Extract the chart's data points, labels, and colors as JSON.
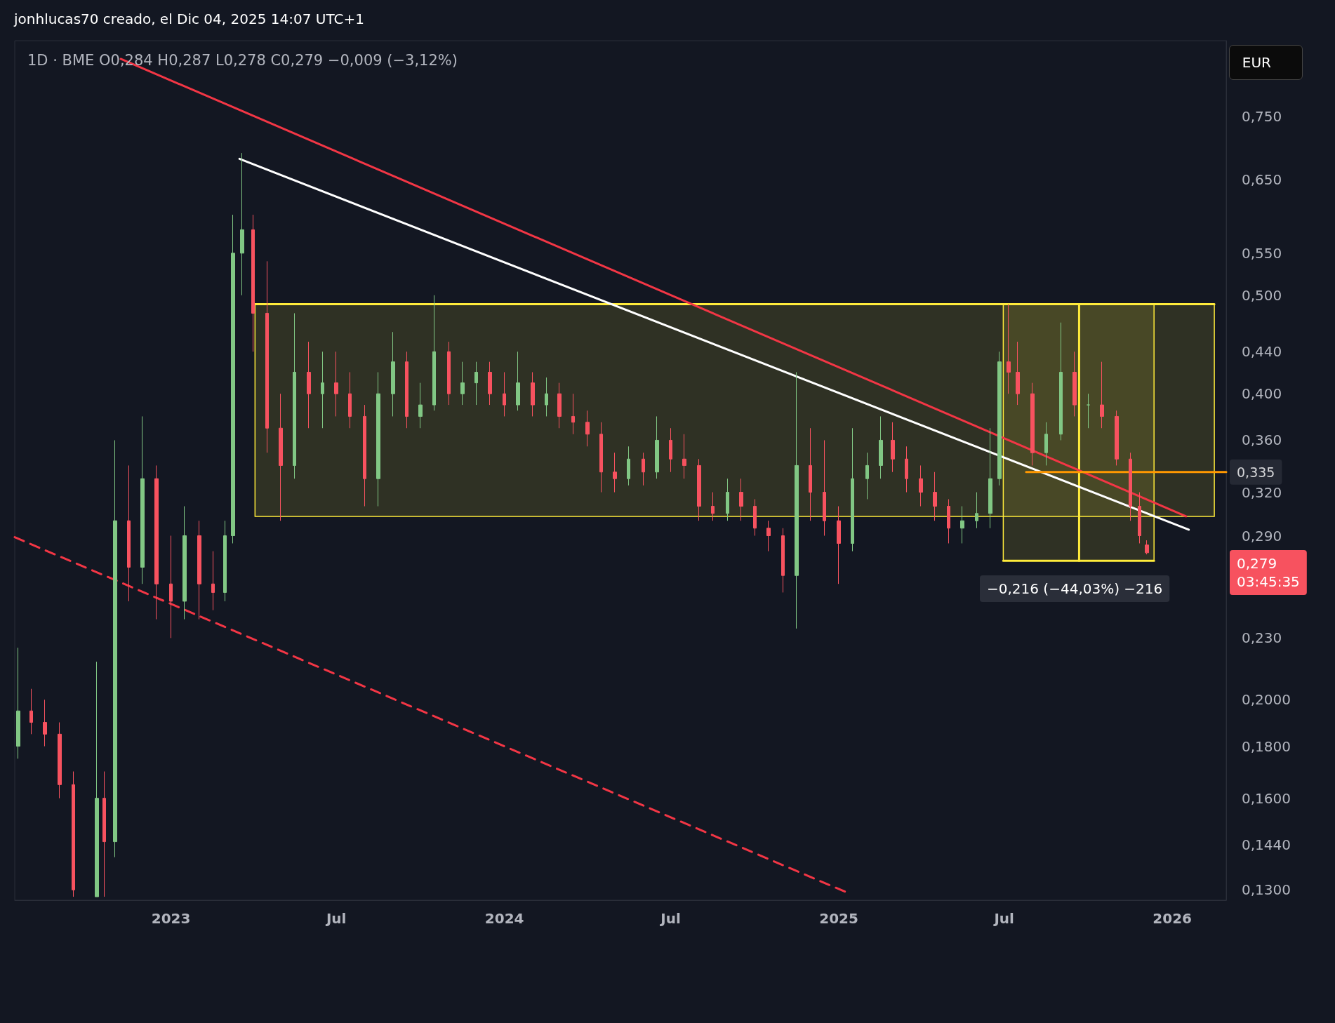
{
  "chart_data": {
    "type": "candlestick",
    "title": "1D · BME O0,284 H0,287 L0,278 C0,279 −0,009 (−3,12%)",
    "annotations": [
      "jonhlucas70 creado, el Dic 04, 2025 14:07 UTC+1",
      "EUR",
      {
        "text": "0,335",
        "x": "2026-03-01",
        "y": 0.335
      },
      "0,279\n03:45:35",
      "−0,216 (−44,03%) −216"
    ],
    "x": [
      "2022-07-18",
      "2022-08-01",
      "2022-08-16",
      "2022-09-01",
      "2022-09-16",
      "2022-10-12",
      "2022-10-20",
      "2022-11-01",
      "2022-11-16",
      "2022-12-01",
      "2022-12-16",
      "2023-01-01",
      "2023-01-16",
      "2023-02-01",
      "2023-02-16",
      "2023-03-01",
      "2023-03-10",
      "2023-03-20",
      "2023-04-01",
      "2023-04-16",
      "2023-05-01",
      "2023-05-16",
      "2023-06-01",
      "2023-06-16",
      "2023-07-01",
      "2023-07-16",
      "2023-08-01",
      "2023-08-16",
      "2023-09-01",
      "2023-09-16",
      "2023-10-01",
      "2023-10-16",
      "2023-11-01",
      "2023-11-16",
      "2023-12-01",
      "2023-12-16",
      "2024-01-01",
      "2024-01-16",
      "2024-02-01",
      "2024-02-16",
      "2024-03-01",
      "2024-03-16",
      "2024-04-01",
      "2024-04-16",
      "2024-05-01",
      "2024-05-16",
      "2024-06-01",
      "2024-06-16",
      "2024-07-01",
      "2024-07-16",
      "2024-08-01",
      "2024-08-16",
      "2024-09-01",
      "2024-09-16",
      "2024-10-01",
      "2024-10-16",
      "2024-11-01",
      "2024-11-16",
      "2024-12-01",
      "2024-12-16",
      "2025-01-01",
      "2025-01-16",
      "2025-02-01",
      "2025-02-16",
      "2025-03-01",
      "2025-03-16",
      "2025-04-01",
      "2025-04-16",
      "2025-05-01",
      "2025-05-16",
      "2025-06-01",
      "2025-06-16",
      "2025-06-26",
      "2025-07-06",
      "2025-07-16",
      "2025-08-01",
      "2025-08-16",
      "2025-09-01",
      "2025-09-16",
      "2025-10-01",
      "2025-10-16",
      "2025-11-01",
      "2025-11-16",
      "2025-11-26",
      "2025-12-04"
    ],
    "ohlc": [
      [
        0.18,
        0.225,
        0.175,
        0.195
      ],
      [
        0.195,
        0.205,
        0.185,
        0.19
      ],
      [
        0.19,
        0.2,
        0.18,
        0.185
      ],
      [
        0.185,
        0.19,
        0.16,
        0.165
      ],
      [
        0.165,
        0.17,
        0.128,
        0.13
      ],
      [
        0.128,
        0.218,
        0.128,
        0.16
      ],
      [
        0.16,
        0.17,
        0.128,
        0.145
      ],
      [
        0.145,
        0.36,
        0.14,
        0.3
      ],
      [
        0.3,
        0.34,
        0.25,
        0.27
      ],
      [
        0.27,
        0.38,
        0.26,
        0.33
      ],
      [
        0.33,
        0.34,
        0.24,
        0.26
      ],
      [
        0.26,
        0.29,
        0.23,
        0.25
      ],
      [
        0.25,
        0.31,
        0.24,
        0.29
      ],
      [
        0.29,
        0.3,
        0.24,
        0.26
      ],
      [
        0.26,
        0.28,
        0.245,
        0.255
      ],
      [
        0.255,
        0.3,
        0.25,
        0.29
      ],
      [
        0.29,
        0.6,
        0.285,
        0.55
      ],
      [
        0.55,
        0.69,
        0.5,
        0.58
      ],
      [
        0.58,
        0.6,
        0.44,
        0.48
      ],
      [
        0.48,
        0.54,
        0.35,
        0.37
      ],
      [
        0.37,
        0.4,
        0.3,
        0.34
      ],
      [
        0.34,
        0.48,
        0.33,
        0.42
      ],
      [
        0.42,
        0.45,
        0.37,
        0.4
      ],
      [
        0.4,
        0.44,
        0.37,
        0.41
      ],
      [
        0.41,
        0.44,
        0.38,
        0.4
      ],
      [
        0.4,
        0.42,
        0.37,
        0.38
      ],
      [
        0.38,
        0.39,
        0.31,
        0.33
      ],
      [
        0.33,
        0.42,
        0.31,
        0.4
      ],
      [
        0.4,
        0.46,
        0.38,
        0.43
      ],
      [
        0.43,
        0.44,
        0.37,
        0.38
      ],
      [
        0.38,
        0.41,
        0.37,
        0.39
      ],
      [
        0.39,
        0.5,
        0.385,
        0.44
      ],
      [
        0.44,
        0.45,
        0.39,
        0.4
      ],
      [
        0.4,
        0.43,
        0.39,
        0.41
      ],
      [
        0.41,
        0.43,
        0.39,
        0.42
      ],
      [
        0.42,
        0.43,
        0.39,
        0.4
      ],
      [
        0.4,
        0.42,
        0.38,
        0.39
      ],
      [
        0.39,
        0.44,
        0.385,
        0.41
      ],
      [
        0.41,
        0.42,
        0.38,
        0.39
      ],
      [
        0.39,
        0.415,
        0.38,
        0.4
      ],
      [
        0.4,
        0.41,
        0.37,
        0.38
      ],
      [
        0.38,
        0.4,
        0.365,
        0.375
      ],
      [
        0.375,
        0.385,
        0.355,
        0.365
      ],
      [
        0.365,
        0.375,
        0.32,
        0.335
      ],
      [
        0.335,
        0.35,
        0.32,
        0.33
      ],
      [
        0.33,
        0.355,
        0.325,
        0.345
      ],
      [
        0.345,
        0.35,
        0.325,
        0.335
      ],
      [
        0.335,
        0.38,
        0.33,
        0.36
      ],
      [
        0.36,
        0.37,
        0.335,
        0.345
      ],
      [
        0.345,
        0.365,
        0.33,
        0.34
      ],
      [
        0.34,
        0.345,
        0.3,
        0.31
      ],
      [
        0.31,
        0.32,
        0.3,
        0.305
      ],
      [
        0.305,
        0.33,
        0.3,
        0.32
      ],
      [
        0.32,
        0.33,
        0.3,
        0.31
      ],
      [
        0.31,
        0.315,
        0.29,
        0.295
      ],
      [
        0.295,
        0.3,
        0.28,
        0.29
      ],
      [
        0.29,
        0.295,
        0.255,
        0.265
      ],
      [
        0.265,
        0.42,
        0.235,
        0.34
      ],
      [
        0.34,
        0.37,
        0.3,
        0.32
      ],
      [
        0.32,
        0.36,
        0.29,
        0.3
      ],
      [
        0.3,
        0.31,
        0.26,
        0.285
      ],
      [
        0.285,
        0.37,
        0.28,
        0.33
      ],
      [
        0.33,
        0.35,
        0.315,
        0.34
      ],
      [
        0.34,
        0.38,
        0.33,
        0.36
      ],
      [
        0.36,
        0.375,
        0.335,
        0.345
      ],
      [
        0.345,
        0.355,
        0.32,
        0.33
      ],
      [
        0.33,
        0.34,
        0.31,
        0.32
      ],
      [
        0.32,
        0.335,
        0.3,
        0.31
      ],
      [
        0.31,
        0.315,
        0.285,
        0.295
      ],
      [
        0.295,
        0.31,
        0.285,
        0.3
      ],
      [
        0.3,
        0.32,
        0.295,
        0.305
      ],
      [
        0.305,
        0.37,
        0.295,
        0.33
      ],
      [
        0.33,
        0.44,
        0.325,
        0.43
      ],
      [
        0.43,
        0.49,
        0.4,
        0.42
      ],
      [
        0.42,
        0.45,
        0.39,
        0.4
      ],
      [
        0.4,
        0.41,
        0.34,
        0.35
      ],
      [
        0.35,
        0.375,
        0.34,
        0.365
      ],
      [
        0.365,
        0.47,
        0.36,
        0.42
      ],
      [
        0.42,
        0.44,
        0.38,
        0.39
      ],
      [
        0.39,
        0.4,
        0.37,
        0.39
      ],
      [
        0.39,
        0.43,
        0.37,
        0.38
      ],
      [
        0.38,
        0.385,
        0.34,
        0.345
      ],
      [
        0.345,
        0.35,
        0.3,
        0.31
      ],
      [
        0.31,
        0.32,
        0.285,
        0.29
      ],
      [
        0.284,
        0.287,
        0.278,
        0.279
      ]
    ],
    "colors": [
      "#81c784",
      "#f7525f",
      "#f7525f",
      "#f7525f",
      "#f7525f",
      "#81c784",
      "#f7525f",
      "#81c784",
      "#f7525f",
      "#81c784",
      "#f7525f",
      "#f7525f",
      "#81c784",
      "#f7525f",
      "#f7525f",
      "#81c784",
      "#81c784",
      "#81c784",
      "#f7525f",
      "#f7525f",
      "#f7525f",
      "#81c784",
      "#f7525f",
      "#81c784",
      "#f7525f",
      "#f7525f",
      "#f7525f",
      "#81c784",
      "#81c784",
      "#f7525f",
      "#81c784",
      "#81c784",
      "#f7525f",
      "#81c784",
      "#81c784",
      "#f7525f",
      "#f7525f",
      "#81c784",
      "#f7525f",
      "#81c784",
      "#f7525f",
      "#f7525f",
      "#f7525f",
      "#f7525f",
      "#f7525f",
      "#81c784",
      "#f7525f",
      "#81c784",
      "#f7525f",
      "#f7525f",
      "#f7525f",
      "#f7525f",
      "#81c784",
      "#f7525f",
      "#f7525f",
      "#f7525f",
      "#f7525f",
      "#81c784",
      "#f7525f",
      "#f7525f",
      "#f7525f",
      "#81c784",
      "#81c784",
      "#81c784",
      "#f7525f",
      "#f7525f",
      "#f7525f",
      "#f7525f",
      "#f7525f",
      "#81c784",
      "#81c784",
      "#81c784",
      "#81c784",
      "#f7525f",
      "#f7525f",
      "#f7525f",
      "#81c784",
      "#81c784",
      "#f7525f",
      "#81c784",
      "#f7525f",
      "#f7525f",
      "#f7525f",
      "#f7525f",
      "#f7525f"
    ],
    "series": [
      {
        "type": "line",
        "x": [
          "2023-04-03",
          "2026-02-16"
        ],
        "values": [
          0.49,
          0.49
        ],
        "lower": [
          0.303,
          0.303
        ],
        "upper": [
          0.49,
          0.49
        ],
        "color": "#ffeb3b"
      },
      {
        "type": "line",
        "x": [
          "2025-06-30",
          "2025-12-12"
        ],
        "values": [
          0.274,
          0.274
        ],
        "lower": [
          0.274,
          0.274
        ],
        "upper": [
          0.49,
          0.49
        ],
        "color": "#ffeb3b"
      },
      {
        "type": "line",
        "x": [
          "2025-09-21",
          "2025-09-21"
        ],
        "values": [
          0.49,
          0.274
        ],
        "color": "#ffeb3b",
        "line_style": "solid"
      },
      {
        "type": "line",
        "x": [
          "2022-11-07",
          "2026-01-16"
        ],
        "values": [
          0.854,
          0.303
        ],
        "color": "#f23645",
        "line_style": "solid"
      },
      {
        "type": "line",
        "x": [
          "2023-03-17",
          "2026-01-19"
        ],
        "values": [
          0.681,
          0.294
        ],
        "color": "#ffffff",
        "line_style": "solid"
      },
      {
        "type": "line",
        "x": [
          "2022-07-14",
          "2025-01-12"
        ],
        "values": [
          0.289,
          0.129
        ],
        "color": "#f23645",
        "line_style": "dashed"
      },
      {
        "type": "line",
        "x": [
          "2025-07-25",
          "2026-03-01"
        ],
        "values": [
          0.335,
          0.335
        ],
        "color": "#ff9800",
        "line_style": "solid"
      }
    ],
    "xlim": [
      "2022-07-14",
      "2026-03-01"
    ],
    "xticks": [
      {
        "value": "2023-01-01",
        "label": "2023"
      },
      {
        "value": "2023-07-01",
        "label": "Jul"
      },
      {
        "value": "2024-01-01",
        "label": "2024"
      },
      {
        "value": "2024-07-01",
        "label": "Jul"
      },
      {
        "value": "2025-01-01",
        "label": "2025"
      },
      {
        "value": "2025-07-01",
        "label": "Jul"
      },
      {
        "value": "2026-01-01",
        "label": "2026"
      }
    ],
    "ylim": [
      0.127,
      0.89
    ],
    "log": true,
    "yticks": [
      {
        "value": 0.75,
        "label": "0,750"
      },
      {
        "value": 0.65,
        "label": "0,650"
      },
      {
        "value": 0.55,
        "label": "0,550"
      },
      {
        "value": 0.5,
        "label": "0,500"
      },
      {
        "value": 0.44,
        "label": "0,440"
      },
      {
        "value": 0.4,
        "label": "0,400"
      },
      {
        "value": 0.36,
        "label": "0,360"
      },
      {
        "value": 0.32,
        "label": "0,320"
      },
      {
        "value": 0.29,
        "label": "0,290"
      },
      {
        "value": 0.23,
        "label": "0,230"
      },
      {
        "value": 0.2,
        "label": "0,2000"
      },
      {
        "value": 0.18,
        "label": "0,1800"
      },
      {
        "value": 0.16,
        "label": "0,1600"
      },
      {
        "value": 0.144,
        "label": "0,1440"
      },
      {
        "value": 0.13,
        "label": "0,1300"
      }
    ]
  }
}
